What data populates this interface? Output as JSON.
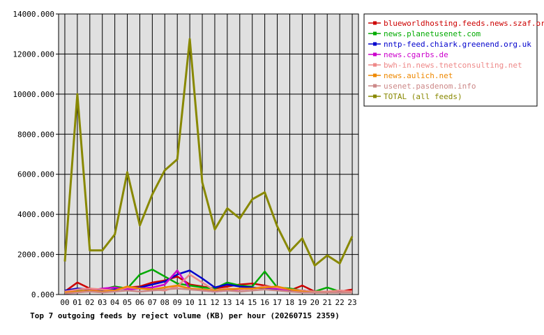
{
  "chart_data": {
    "type": "line",
    "title": "Top 7 outgoing feeds by reject volume (KB) per hour (20260715 2359)",
    "xlabel": "",
    "ylabel": "",
    "ylim": [
      0,
      14000
    ],
    "yticks": [
      "0.000",
      "2000.000",
      "4000.000",
      "6000.000",
      "8000.000",
      "10000.000",
      "12000.000",
      "14000.000"
    ],
    "ytick_values": [
      0,
      2000,
      4000,
      6000,
      8000,
      10000,
      12000,
      14000
    ],
    "categories": [
      "00",
      "01",
      "02",
      "03",
      "04",
      "05",
      "06",
      "07",
      "08",
      "09",
      "10",
      "11",
      "12",
      "13",
      "14",
      "15",
      "16",
      "17",
      "18",
      "19",
      "20",
      "21",
      "22",
      "23"
    ],
    "grid": true,
    "legend_position": "top-right",
    "series": [
      {
        "name": "blueworldhosting.feeds.news.szaf.org",
        "color": "#cc0000",
        "values": [
          150,
          600,
          300,
          200,
          250,
          350,
          400,
          600,
          700,
          900,
          500,
          400,
          300,
          400,
          500,
          550,
          450,
          300,
          200,
          450,
          150,
          150,
          150,
          250
        ]
      },
      {
        "name": "news.planetusenet.com",
        "color": "#00aa00",
        "values": [
          100,
          200,
          150,
          250,
          400,
          300,
          1000,
          1250,
          900,
          550,
          450,
          350,
          300,
          600,
          450,
          400,
          1150,
          350,
          300,
          200,
          150,
          350,
          150,
          150
        ]
      },
      {
        "name": "nntp-feed.chiark.greenend.org.uk",
        "color": "#0000cc",
        "values": [
          200,
          300,
          250,
          200,
          250,
          300,
          350,
          500,
          650,
          1000,
          1200,
          800,
          350,
          500,
          400,
          350,
          300,
          250,
          200,
          200,
          150,
          150,
          100,
          100
        ]
      },
      {
        "name": "news.cgarbs.de",
        "color": "#cc00cc",
        "values": [
          100,
          150,
          200,
          300,
          350,
          250,
          300,
          350,
          500,
          1200,
          300,
          200,
          150,
          200,
          250,
          300,
          350,
          300,
          150,
          150,
          100,
          100,
          100,
          150
        ]
      },
      {
        "name": "bwh-in.news.tnetconsulting.net",
        "color": "#ee8888",
        "values": [
          150,
          250,
          300,
          250,
          200,
          350,
          300,
          250,
          200,
          400,
          1000,
          600,
          200,
          300,
          250,
          300,
          400,
          350,
          250,
          200,
          150,
          150,
          200,
          150
        ]
      },
      {
        "name": "news.aulich.net",
        "color": "#ee8800",
        "values": [
          100,
          150,
          200,
          150,
          200,
          400,
          300,
          250,
          350,
          450,
          300,
          250,
          200,
          250,
          300,
          300,
          350,
          400,
          250,
          150,
          100,
          100,
          100,
          100
        ]
      },
      {
        "name": "usenet.pasdenom.info",
        "color": "#cc8888",
        "values": [
          50,
          100,
          150,
          100,
          150,
          200,
          150,
          200,
          250,
          300,
          250,
          200,
          150,
          200,
          150,
          200,
          250,
          200,
          150,
          100,
          100,
          100,
          100,
          100
        ]
      },
      {
        "name": "TOTAL (all feeds)",
        "color": "#888800",
        "values": [
          1650,
          10000,
          2200,
          2200,
          3000,
          6100,
          3450,
          5000,
          6200,
          6750,
          12750,
          5600,
          3250,
          4300,
          3800,
          4750,
          5100,
          3400,
          2150,
          2800,
          1450,
          1950,
          1550,
          2900
        ]
      }
    ]
  }
}
